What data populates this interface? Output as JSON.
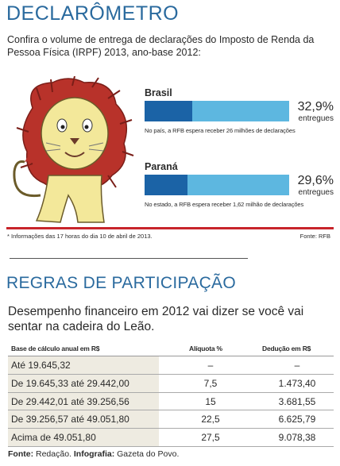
{
  "header": {
    "title": "DECLARÔMETRO",
    "intro": "Confira o volume de entrega de declarações do Imposto de Renda da Pessoa Física (IRPF) 2013, ano-base 2012:"
  },
  "chart_data": {
    "type": "bar",
    "orientation": "horizontal",
    "categories": [
      "Brasil",
      "Paraná"
    ],
    "values": [
      32.9,
      29.6
    ],
    "value_labels": [
      "32,9%",
      "29,6%"
    ],
    "unit_label": "entregues",
    "notes": [
      "No país, a RFB espera receber 26 milhões de declarações",
      "No estado, a RFB espera receber 1,62 milhão de declarações"
    ],
    "xlim": [
      0,
      100
    ],
    "colors": {
      "fill": "#1b63a6",
      "track": "#5db7e0"
    }
  },
  "footnote": "* Informações das 17 horas do dia 10 de abril de 2013.",
  "source_top": "Fonte: RFB",
  "rules": {
    "title": "REGRAS DE PARTICIPAÇÃO",
    "subtitle": "Desempenho financeiro em 2012 vai dizer se você vai sentar na cadeira do Leão.",
    "headers": [
      "Base de cálculo anual em R$",
      "Alíquota %",
      "Dedução em R$"
    ],
    "rows": [
      [
        "Até 19.645,32",
        "–",
        "–"
      ],
      [
        "De 19.645,33 até 29.442,00",
        "7,5",
        "1.473,40"
      ],
      [
        "De 29.442,01 até 39.256,56",
        "15",
        "3.681,55"
      ],
      [
        "De 39.256,57 até 49.051,80",
        "22,5",
        "6.625,79"
      ],
      [
        "Acima de 49.051,80",
        "27,5",
        "9.078,38"
      ]
    ]
  },
  "footer": {
    "source_label": "Fonte:",
    "source": "Redação.",
    "infographic_label": "Infografia:",
    "infographic": "Gazeta do Povo."
  },
  "colors": {
    "title": "#2a6a9e",
    "rule": "#c8242b",
    "table_band": "#eeebe1"
  }
}
